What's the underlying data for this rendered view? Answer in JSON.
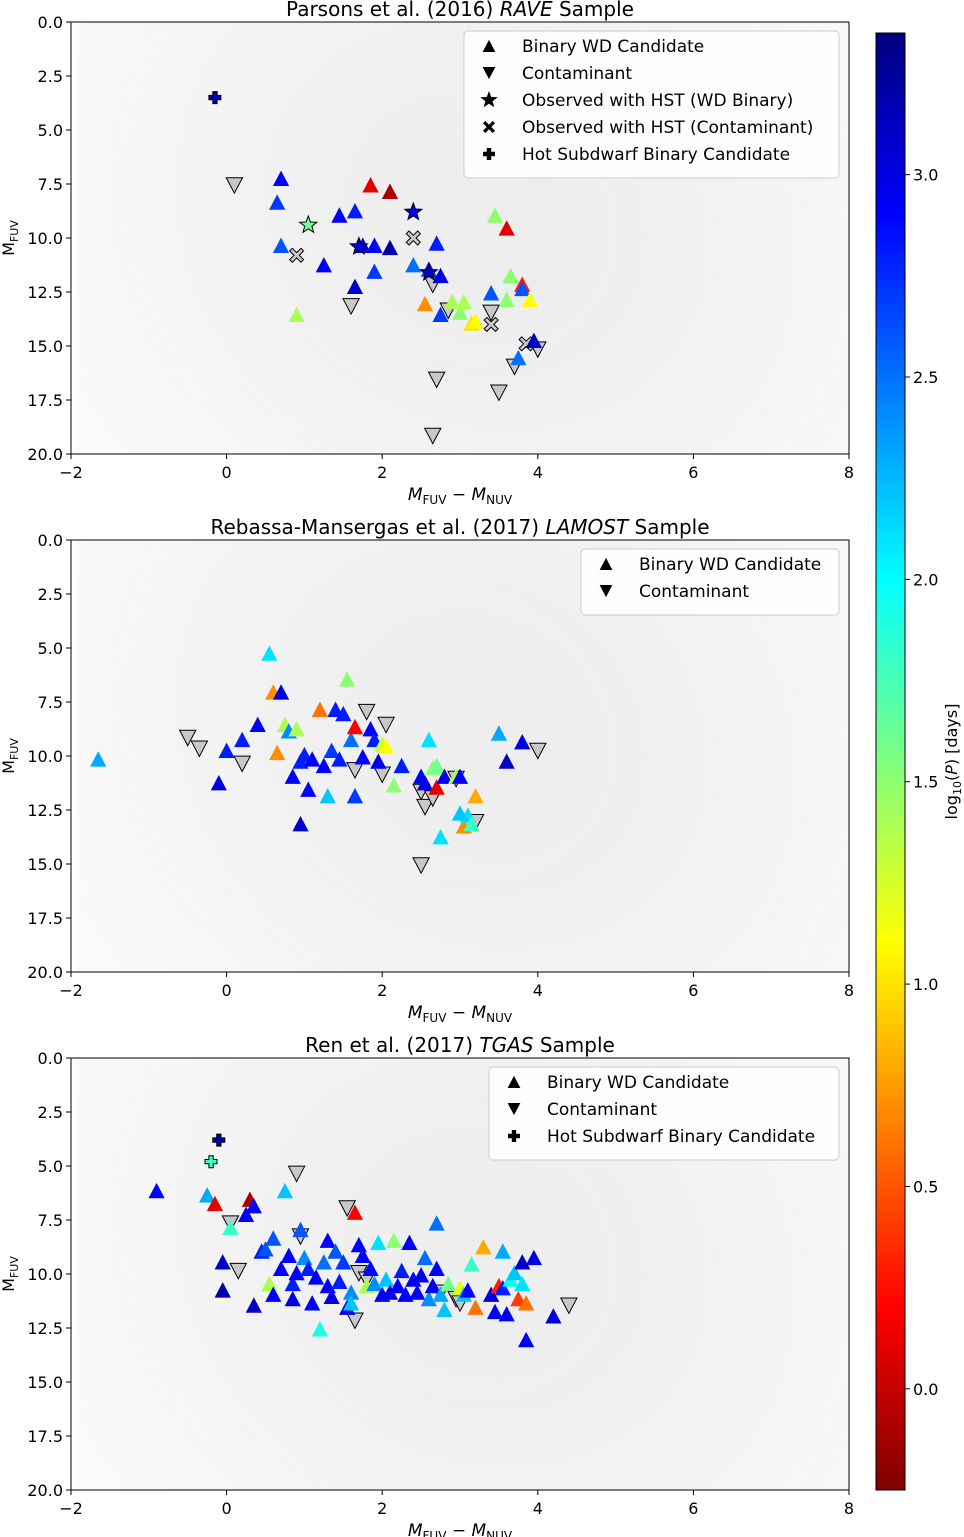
{
  "figure": {
    "colorbar_label": "log10(P) [days]",
    "colorbar_ticks": [
      0.0,
      0.5,
      1.0,
      1.5,
      2.0,
      2.5,
      3.0
    ],
    "colorbar_range": [
      -0.25,
      3.35
    ],
    "colormap": "jet"
  },
  "chart_data": [
    {
      "type": "scatter",
      "title_plain": "Parsons et al. (2016) ",
      "title_italic": "RAVE",
      "title_end": " Sample",
      "xlabel": "MFUV − MNUV",
      "ylabel": "MFUV",
      "xlim": [
        -2,
        8
      ],
      "ylim": [
        20,
        0
      ],
      "xticks": [
        -2,
        0,
        2,
        4,
        6,
        8
      ],
      "yticks": [
        0.0,
        2.5,
        5.0,
        7.5,
        10.0,
        12.5,
        15.0,
        17.5,
        20.0
      ],
      "legend_position": "top-right",
      "legend": [
        {
          "marker": "triangle-up",
          "label": "Binary WD Candidate"
        },
        {
          "marker": "triangle-down",
          "label": "Contaminant"
        },
        {
          "marker": "star",
          "label": "Observed with HST (WD Binary)"
        },
        {
          "marker": "x",
          "label": "Observed with HST (Contaminant)"
        },
        {
          "marker": "plus",
          "label": "Hot Subdwarf Binary Candidate"
        }
      ],
      "candidates": [
        [
          0.7,
          7.3,
          2.9
        ],
        [
          0.65,
          8.4,
          2.7
        ],
        [
          0.7,
          10.4,
          2.6
        ],
        [
          1.25,
          11.3,
          2.9
        ],
        [
          1.45,
          9.0,
          2.9
        ],
        [
          1.65,
          8.8,
          2.8
        ],
        [
          1.65,
          12.3,
          3.1
        ],
        [
          1.75,
          10.4,
          3.0
        ],
        [
          1.85,
          7.6,
          0.1
        ],
        [
          1.9,
          10.4,
          2.9
        ],
        [
          1.9,
          11.6,
          2.7
        ],
        [
          2.1,
          7.9,
          -0.1
        ],
        [
          2.1,
          10.5,
          3.2
        ],
        [
          2.4,
          11.3,
          2.5
        ],
        [
          2.6,
          11.5,
          2.7
        ],
        [
          2.7,
          10.3,
          2.8
        ],
        [
          2.75,
          11.8,
          3.0
        ],
        [
          2.75,
          13.6,
          2.7
        ],
        [
          2.55,
          13.1,
          0.7
        ],
        [
          2.9,
          13.0,
          1.4
        ],
        [
          3.0,
          13.5,
          1.5
        ],
        [
          3.05,
          13.0,
          1.4
        ],
        [
          3.15,
          14.0,
          1.0
        ],
        [
          3.2,
          13.9,
          1.1
        ],
        [
          3.4,
          12.6,
          2.6
        ],
        [
          3.45,
          9.0,
          1.5
        ],
        [
          3.6,
          9.6,
          0.1
        ],
        [
          3.65,
          11.8,
          1.5
        ],
        [
          3.6,
          12.9,
          1.5
        ],
        [
          3.8,
          12.2,
          0.3
        ],
        [
          3.8,
          12.4,
          2.6
        ],
        [
          3.9,
          12.9,
          1.1
        ],
        [
          3.95,
          14.8,
          3.1
        ],
        [
          3.75,
          15.6,
          2.5
        ],
        [
          0.9,
          13.6,
          1.4
        ]
      ],
      "contaminants": [
        [
          0.1,
          7.5
        ],
        [
          1.6,
          13.1
        ],
        [
          2.65,
          12.1
        ],
        [
          2.85,
          13.3
        ],
        [
          3.4,
          13.4
        ],
        [
          3.7,
          15.9
        ],
        [
          4.0,
          15.1
        ],
        [
          2.7,
          16.5
        ],
        [
          3.5,
          17.1
        ],
        [
          2.65,
          19.1
        ]
      ],
      "hst_wd": [
        [
          1.05,
          9.4,
          1.6
        ],
        [
          1.7,
          10.4,
          3.0
        ],
        [
          2.4,
          8.8,
          2.9
        ],
        [
          2.6,
          11.6,
          3.1
        ]
      ],
      "hst_contaminant": [
        [
          0.9,
          10.8
        ],
        [
          2.4,
          10.0
        ],
        [
          3.4,
          14.0
        ],
        [
          3.85,
          14.9
        ]
      ],
      "hot_subdwarf": [
        [
          -0.15,
          3.5,
          3.2
        ]
      ]
    },
    {
      "type": "scatter",
      "title_plain": "Rebassa-Mansergas et al. (2017) ",
      "title_italic": "LAMOST",
      "title_end": " Sample",
      "xlabel": "MFUV − MNUV",
      "ylabel": "MFUV",
      "xlim": [
        -2,
        8
      ],
      "ylim": [
        20,
        0
      ],
      "xticks": [
        -2,
        0,
        2,
        4,
        6,
        8
      ],
      "yticks": [
        0.0,
        2.5,
        5.0,
        7.5,
        10.0,
        12.5,
        15.0,
        17.5,
        20.0
      ],
      "legend_position": "top-right",
      "legend": [
        {
          "marker": "triangle-up",
          "label": "Binary WD Candidate"
        },
        {
          "marker": "triangle-down",
          "label": "Contaminant"
        }
      ],
      "candidates": [
        [
          -1.65,
          10.2,
          2.3
        ],
        [
          -0.1,
          11.3,
          3.0
        ],
        [
          0.0,
          9.8,
          2.8
        ],
        [
          0.2,
          9.3,
          2.8
        ],
        [
          0.4,
          8.6,
          2.9
        ],
        [
          0.55,
          5.3,
          2.1
        ],
        [
          0.6,
          7.1,
          0.7
        ],
        [
          0.65,
          9.9,
          0.7
        ],
        [
          0.7,
          7.1,
          3.0
        ],
        [
          0.75,
          8.6,
          1.4
        ],
        [
          0.8,
          8.9,
          2.4
        ],
        [
          0.85,
          11.0,
          2.9
        ],
        [
          0.9,
          8.8,
          1.4
        ],
        [
          0.95,
          10.3,
          2.8
        ],
        [
          0.95,
          13.2,
          3.1
        ],
        [
          1.0,
          10.0,
          2.8
        ],
        [
          1.05,
          11.6,
          2.9
        ],
        [
          1.1,
          10.2,
          2.9
        ],
        [
          1.2,
          7.9,
          0.6
        ],
        [
          1.25,
          10.5,
          2.9
        ],
        [
          1.3,
          11.9,
          2.2
        ],
        [
          1.35,
          9.8,
          2.7
        ],
        [
          1.4,
          7.9,
          2.8
        ],
        [
          1.45,
          10.2,
          2.8
        ],
        [
          1.5,
          8.1,
          2.8
        ],
        [
          1.55,
          6.5,
          1.5
        ],
        [
          1.6,
          9.3,
          2.5
        ],
        [
          1.65,
          11.9,
          2.7
        ],
        [
          1.65,
          8.7,
          0.2
        ],
        [
          1.75,
          10.1,
          2.9
        ],
        [
          1.85,
          8.8,
          2.9
        ],
        [
          1.9,
          9.3,
          2.8
        ],
        [
          1.95,
          10.3,
          3.0
        ],
        [
          2.0,
          9.5,
          1.3
        ],
        [
          2.05,
          9.6,
          1.1
        ],
        [
          2.15,
          11.4,
          1.5
        ],
        [
          2.25,
          10.5,
          2.8
        ],
        [
          2.5,
          11.0,
          2.9
        ],
        [
          2.55,
          11.3,
          3.0
        ],
        [
          2.6,
          9.3,
          2.1
        ],
        [
          2.65,
          10.6,
          1.5
        ],
        [
          2.7,
          10.5,
          1.6
        ],
        [
          2.7,
          11.5,
          0.1
        ],
        [
          2.75,
          13.8,
          2.1
        ],
        [
          2.8,
          11.0,
          3.0
        ],
        [
          2.95,
          11.0,
          1.4
        ],
        [
          3.0,
          11.0,
          2.9
        ],
        [
          3.05,
          13.3,
          0.7
        ],
        [
          3.1,
          12.8,
          2.1
        ],
        [
          3.15,
          13.2,
          1.8
        ],
        [
          3.2,
          11.9,
          0.8
        ],
        [
          3.0,
          12.7,
          2.2
        ],
        [
          3.5,
          9.0,
          2.3
        ],
        [
          3.6,
          10.3,
          3.1
        ],
        [
          3.8,
          9.4,
          3.0
        ]
      ],
      "contaminants": [
        [
          -0.5,
          9.1
        ],
        [
          -0.35,
          9.6
        ],
        [
          0.2,
          10.3
        ],
        [
          1.65,
          10.6
        ],
        [
          1.8,
          7.9
        ],
        [
          2.0,
          10.8
        ],
        [
          2.05,
          8.5
        ],
        [
          2.5,
          11.6
        ],
        [
          2.55,
          12.3
        ],
        [
          2.65,
          11.9
        ],
        [
          2.95,
          11.0
        ],
        [
          3.2,
          13.0
        ],
        [
          2.5,
          15.0
        ],
        [
          4.0,
          9.7
        ]
      ],
      "hst_wd": [],
      "hst_contaminant": [],
      "hot_subdwarf": []
    },
    {
      "type": "scatter",
      "title_plain": "Ren et al. (2017) ",
      "title_italic": "TGAS",
      "title_end": " Sample",
      "xlabel": "MFUV − MNUV",
      "ylabel": "MFUV",
      "xlim": [
        -2,
        8
      ],
      "ylim": [
        20,
        0
      ],
      "xticks": [
        -2,
        0,
        2,
        4,
        6,
        8
      ],
      "yticks": [
        0.0,
        2.5,
        5.0,
        7.5,
        10.0,
        12.5,
        15.0,
        17.5,
        20.0
      ],
      "legend_position": "top-right",
      "legend": [
        {
          "marker": "triangle-up",
          "label": "Binary WD Candidate"
        },
        {
          "marker": "triangle-down",
          "label": "Contaminant"
        },
        {
          "marker": "plus",
          "label": "Hot Subdwarf Binary Candidate"
        }
      ],
      "candidates": [
        [
          -0.9,
          6.2,
          2.9
        ],
        [
          -0.25,
          6.4,
          2.3
        ],
        [
          -0.15,
          6.8,
          0.1
        ],
        [
          0.3,
          6.6,
          -0.1
        ],
        [
          -0.05,
          9.5,
          3.1
        ],
        [
          -0.05,
          10.8,
          3.2
        ],
        [
          0.05,
          7.9,
          1.8
        ],
        [
          0.25,
          7.3,
          2.9
        ],
        [
          0.35,
          6.9,
          2.9
        ],
        [
          0.35,
          11.5,
          3.1
        ],
        [
          0.45,
          9.0,
          2.8
        ],
        [
          0.5,
          8.9,
          2.6
        ],
        [
          0.55,
          10.5,
          1.4
        ],
        [
          0.6,
          8.4,
          2.6
        ],
        [
          0.6,
          11.0,
          2.9
        ],
        [
          0.7,
          9.8,
          2.9
        ],
        [
          0.75,
          6.2,
          2.2
        ],
        [
          0.8,
          9.2,
          2.9
        ],
        [
          0.85,
          10.5,
          2.8
        ],
        [
          0.85,
          11.2,
          3.0
        ],
        [
          0.9,
          10.0,
          2.9
        ],
        [
          0.95,
          8.0,
          2.6
        ],
        [
          1.0,
          9.3,
          2.4
        ],
        [
          1.05,
          9.8,
          2.8
        ],
        [
          1.1,
          11.4,
          2.9
        ],
        [
          1.15,
          10.2,
          2.9
        ],
        [
          1.2,
          12.6,
          1.9
        ],
        [
          1.25,
          9.5,
          2.5
        ],
        [
          1.3,
          10.6,
          2.9
        ],
        [
          1.3,
          8.5,
          2.9
        ],
        [
          1.35,
          11.1,
          3.0
        ],
        [
          1.4,
          9.0,
          2.6
        ],
        [
          1.45,
          10.4,
          2.8
        ],
        [
          1.5,
          9.5,
          2.7
        ],
        [
          1.55,
          11.6,
          3.0
        ],
        [
          1.6,
          10.9,
          2.4
        ],
        [
          1.6,
          11.4,
          2.2
        ],
        [
          1.65,
          7.2,
          0.2
        ],
        [
          1.7,
          8.7,
          2.9
        ],
        [
          1.75,
          9.2,
          2.9
        ],
        [
          1.8,
          10.6,
          1.4
        ],
        [
          1.85,
          9.8,
          2.9
        ],
        [
          1.9,
          10.5,
          2.4
        ],
        [
          1.95,
          8.6,
          2.1
        ],
        [
          2.0,
          11.0,
          2.9
        ],
        [
          2.05,
          10.3,
          2.2
        ],
        [
          2.1,
          10.9,
          3.0
        ],
        [
          2.15,
          8.5,
          1.5
        ],
        [
          2.2,
          10.6,
          2.9
        ],
        [
          2.25,
          9.9,
          2.8
        ],
        [
          2.3,
          11.0,
          2.9
        ],
        [
          2.35,
          8.6,
          2.9
        ],
        [
          2.4,
          10.3,
          2.9
        ],
        [
          2.45,
          10.9,
          2.9
        ],
        [
          2.5,
          10.1,
          3.0
        ],
        [
          2.55,
          9.3,
          2.5
        ],
        [
          2.6,
          11.2,
          2.4
        ],
        [
          2.65,
          10.6,
          2.9
        ],
        [
          2.7,
          9.8,
          2.9
        ],
        [
          2.7,
          7.7,
          2.5
        ],
        [
          2.75,
          11.0,
          2.3
        ],
        [
          2.8,
          11.7,
          2.2
        ],
        [
          2.85,
          10.5,
          1.6
        ],
        [
          3.0,
          10.7,
          1.2
        ],
        [
          3.05,
          11.0,
          2.2
        ],
        [
          3.1,
          10.8,
          2.9
        ],
        [
          3.15,
          9.6,
          1.8
        ],
        [
          3.2,
          11.6,
          0.6
        ],
        [
          3.3,
          8.8,
          0.8
        ],
        [
          3.4,
          11.0,
          3.0
        ],
        [
          3.45,
          11.8,
          2.9
        ],
        [
          3.5,
          10.6,
          0.3
        ],
        [
          3.55,
          10.7,
          2.8
        ],
        [
          3.6,
          11.9,
          3.0
        ],
        [
          3.65,
          10.3,
          2.0
        ],
        [
          3.7,
          10.0,
          2.2
        ],
        [
          3.75,
          11.2,
          0.4
        ],
        [
          3.8,
          9.5,
          3.1
        ],
        [
          3.85,
          11.4,
          0.6
        ],
        [
          3.85,
          13.1,
          2.9
        ],
        [
          3.95,
          9.3,
          3.0
        ],
        [
          3.8,
          10.5,
          2.1
        ],
        [
          3.55,
          9.0,
          2.3
        ],
        [
          4.2,
          12.0,
          3.0
        ]
      ],
      "contaminants": [
        [
          0.05,
          7.6
        ],
        [
          0.15,
          9.8
        ],
        [
          0.9,
          5.3
        ],
        [
          0.95,
          8.2
        ],
        [
          1.55,
          6.9
        ],
        [
          1.7,
          9.9
        ],
        [
          1.65,
          12.1
        ],
        [
          1.8,
          10.2
        ],
        [
          2.75,
          10.8
        ],
        [
          2.95,
          11.1
        ],
        [
          3.0,
          11.3
        ],
        [
          4.4,
          11.4
        ]
      ],
      "hst_wd": [],
      "hst_contaminant": [],
      "hot_subdwarf": [
        [
          -0.1,
          3.8,
          3.2
        ],
        [
          -0.2,
          4.8,
          1.8
        ]
      ]
    }
  ]
}
